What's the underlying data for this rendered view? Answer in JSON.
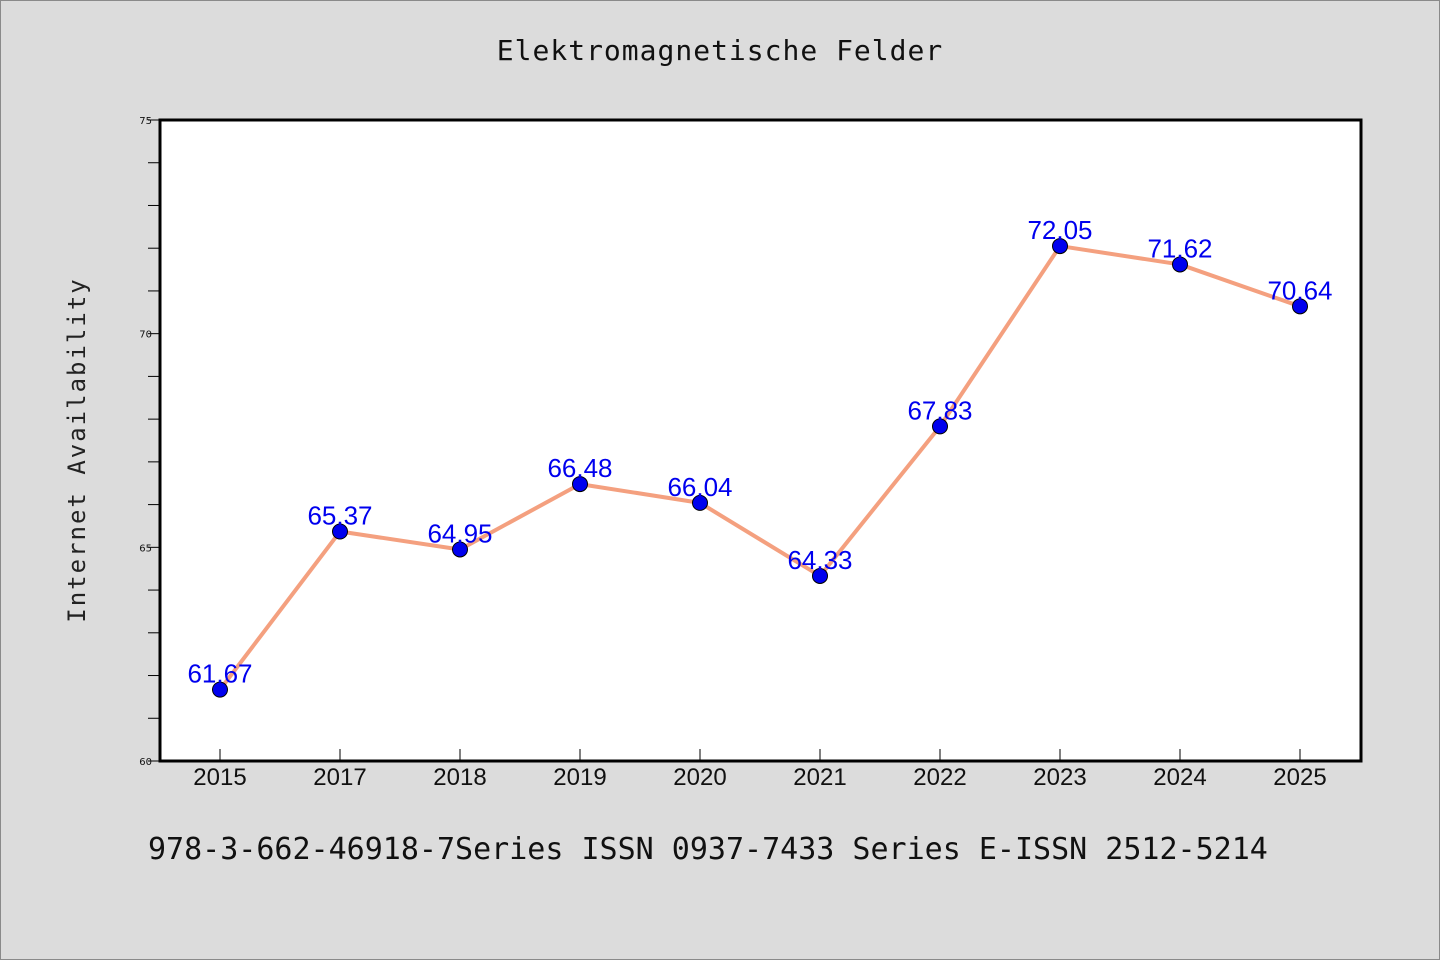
{
  "chart_data": {
    "type": "line",
    "title": "Elektromagnetische Felder",
    "ylabel": "Internet Availability",
    "xlabel": "",
    "categories": [
      "2015",
      "2017",
      "2018",
      "2019",
      "2020",
      "2021",
      "2022",
      "2023",
      "2024",
      "2025"
    ],
    "series": [
      {
        "values": [
          61.67,
          65.37,
          64.95,
          66.48,
          66.04,
          64.33,
          67.83,
          72.05,
          71.62,
          70.64
        ],
        "labels": [
          "61.67",
          "65.37",
          "64.95",
          "66.48",
          "66.04",
          "64.33",
          "67.83",
          "72.05",
          "71.62",
          "70.64"
        ],
        "line_color": "#f4a07f",
        "marker_color": "#0000ee"
      }
    ],
    "ylim": [
      60,
      75
    ],
    "yticks": [
      "60",
      "65",
      "70",
      "75"
    ],
    "grid": false
  },
  "caption": "978-3-662-46918-7Series ISSN 0937-7433 Series E-ISSN 2512-5214"
}
